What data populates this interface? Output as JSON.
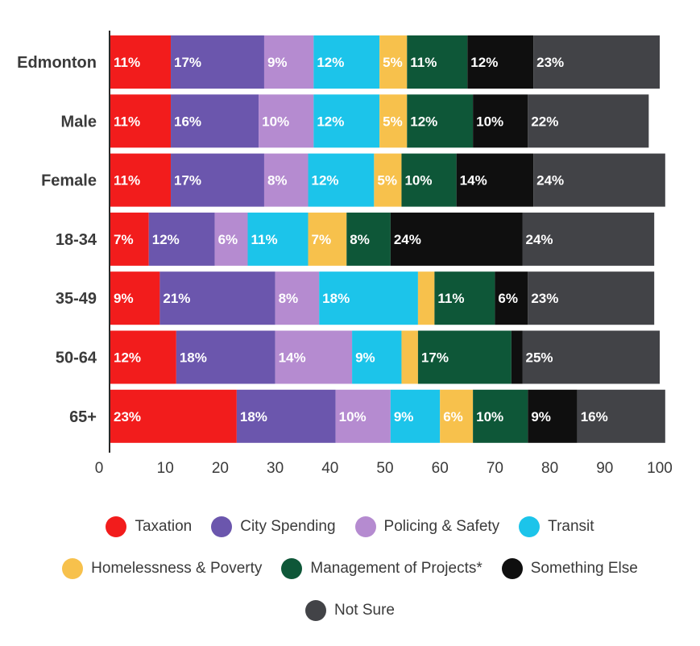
{
  "chart_data": {
    "type": "bar",
    "orientation": "horizontal",
    "stacked": true,
    "categories": [
      "Edmonton",
      "Male",
      "Female",
      "18-34",
      "35-49",
      "50-64",
      "65+"
    ],
    "x_ticks": [
      "0",
      "10",
      "20",
      "30",
      "40",
      "50",
      "60",
      "70",
      "80",
      "90",
      "100"
    ],
    "xlim": [
      0,
      100
    ],
    "grid": false,
    "legend_position": "bottom",
    "series": [
      {
        "name": "Taxation",
        "color": "#f21c1c",
        "values": [
          11,
          11,
          11,
          7,
          9,
          12,
          23
        ],
        "labels": [
          "11%",
          "11%",
          "11%",
          "7%",
          "9%",
          "12%",
          "23%"
        ]
      },
      {
        "name": "City Spending",
        "color": "#6b56ad",
        "values": [
          17,
          16,
          17,
          12,
          21,
          18,
          18
        ],
        "labels": [
          "17%",
          "16%",
          "17%",
          "12%",
          "21%",
          "18%",
          "18%"
        ]
      },
      {
        "name": "Policing & Safety",
        "color": "#b58bd0",
        "values": [
          9,
          10,
          8,
          6,
          8,
          14,
          10
        ],
        "labels": [
          "9%",
          "10%",
          "8%",
          "6%",
          "8%",
          "14%",
          "10%"
        ]
      },
      {
        "name": "Transit",
        "color": "#1cc4ea",
        "values": [
          12,
          12,
          12,
          11,
          18,
          9,
          9
        ],
        "labels": [
          "12%",
          "12%",
          "12%",
          "11%",
          "18%",
          "9%",
          "9%"
        ]
      },
      {
        "name": "Homelessness & Poverty",
        "color": "#f7c14c",
        "values": [
          5,
          5,
          5,
          7,
          3,
          3,
          6
        ],
        "labels": [
          "5%",
          "5%",
          "5%",
          "7%",
          "",
          "",
          "6%"
        ]
      },
      {
        "name": "Management of Projects*",
        "color": "#0e5738",
        "values": [
          11,
          12,
          10,
          8,
          11,
          17,
          10
        ],
        "labels": [
          "11%",
          "12%",
          "10%",
          "8%",
          "11%",
          "17%",
          "10%"
        ]
      },
      {
        "name": "Something Else",
        "color": "#0f0f0f",
        "values": [
          12,
          10,
          14,
          24,
          6,
          2,
          9
        ],
        "labels": [
          "12%",
          "10%",
          "14%",
          "24%",
          "6%",
          "",
          "9%"
        ]
      },
      {
        "name": "Not Sure",
        "color": "#424347",
        "values": [
          23,
          22,
          24,
          24,
          23,
          25,
          16
        ],
        "labels": [
          "23%",
          "22%",
          "24%",
          "24%",
          "23%",
          "25%",
          "16%"
        ]
      }
    ],
    "legend": {
      "rows": [
        [
          "Taxation",
          "City Spending",
          "Policing & Safety",
          "Transit"
        ],
        [
          "Homelessness & Poverty",
          "Management of Projects*",
          "Something Else"
        ],
        [
          "Not Sure"
        ]
      ]
    }
  }
}
